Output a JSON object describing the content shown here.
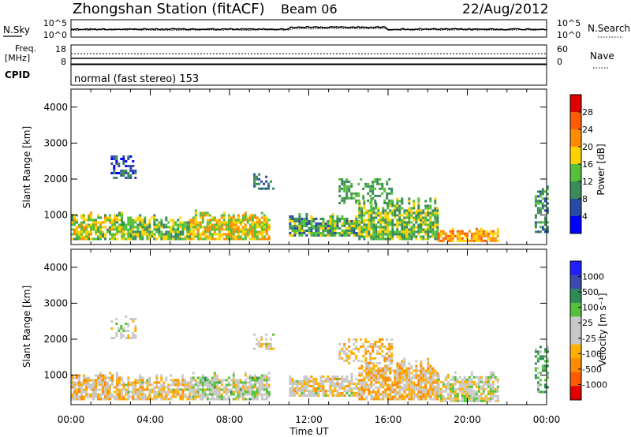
{
  "header": {
    "station": "Zhongshan Station (fitACF)",
    "beam": "Beam 06",
    "date": "22/Aug/2012"
  },
  "noise_panel": {
    "left_label": "N.Sky",
    "left_ticks": [
      "10^5",
      "10^0"
    ],
    "right_ticks": [
      "10^5",
      "10^0"
    ],
    "right_label": "N.Search"
  },
  "freq_panel": {
    "left_label_top": "Freq.",
    "left_label_bottom": "[MHz]",
    "left_ticks": [
      "18",
      "8"
    ],
    "right_ticks": [
      "60",
      "0"
    ],
    "right_label": "Nave"
  },
  "cpid": {
    "label": "CPID",
    "text": "normal (fast stereo) 153"
  },
  "x_axis": {
    "title": "Time UT",
    "tick_labels": [
      "00:00",
      "04:00",
      "08:00",
      "12:00",
      "16:00",
      "20:00",
      "00:00"
    ]
  },
  "colors": {
    "power_scale": [
      "#0000ff",
      "#2a4aa8",
      "#3a8a5a",
      "#55c03a",
      "#ffd200",
      "#ff8c00",
      "#ff5a00",
      "#e00000"
    ],
    "velocity_scale": [
      "#e00000",
      "#ff5a00",
      "#ff8c00",
      "#ffb000",
      "#c8c8c8",
      "#c8c8c8",
      "#55c03a",
      "#2e8b57",
      "#3a4ab0",
      "#2020ff"
    ]
  },
  "chart_data": [
    {
      "type": "heatmap",
      "panel": "power",
      "ylabel": "Slant Range [km]",
      "xlabel": "",
      "xlim": [
        0,
        24
      ],
      "ylim": [
        180,
        4500
      ],
      "yticks": [
        "1000",
        "2000",
        "3000",
        "4000"
      ],
      "colorbar": {
        "title": "Power [dB]",
        "ticks": [
          "28",
          "24",
          "20",
          "16",
          "12",
          "8",
          "4"
        ],
        "range": [
          0,
          32
        ]
      },
      "regions": [
        {
          "t0": 0.0,
          "t1": 2.6,
          "r0": 300,
          "r1": 1100,
          "value": 16
        },
        {
          "t0": 2.6,
          "t1": 6.0,
          "r0": 300,
          "r1": 1000,
          "value": 14
        },
        {
          "t0": 6.0,
          "t1": 10.0,
          "r0": 300,
          "r1": 1100,
          "value": 18
        },
        {
          "t0": 11.0,
          "t1": 14.5,
          "r0": 400,
          "r1": 1000,
          "value": 12
        },
        {
          "t0": 14.5,
          "t1": 18.5,
          "r0": 300,
          "r1": 1500,
          "value": 14
        },
        {
          "t0": 18.5,
          "t1": 21.5,
          "r0": 250,
          "r1": 600,
          "value": 22
        }
      ],
      "scatter_regions": [
        {
          "t0": 2.0,
          "t1": 3.2,
          "r0": 2000,
          "r1": 2600,
          "value": 6
        },
        {
          "t0": 9.2,
          "t1": 10.2,
          "r0": 1700,
          "r1": 2100,
          "value": 8
        },
        {
          "t0": 13.5,
          "t1": 16.2,
          "r0": 1300,
          "r1": 2000,
          "value": 12
        },
        {
          "t0": 23.4,
          "t1": 24.0,
          "r0": 500,
          "r1": 1800,
          "value": 10
        }
      ]
    },
    {
      "type": "heatmap",
      "panel": "velocity",
      "ylabel": "Slant Range [km]",
      "xlabel": "Time UT",
      "xlim": [
        0,
        24
      ],
      "ylim": [
        180,
        4500
      ],
      "yticks": [
        "1000",
        "2000",
        "3000",
        "4000"
      ],
      "colorbar": {
        "title": "Velocity [m s⁻¹]",
        "ticks": [
          "1000",
          "500",
          "100",
          "25",
          "-25",
          "-100",
          "-500",
          "-1000"
        ],
        "range": [
          -1200,
          1200
        ]
      },
      "regions": [
        {
          "t0": 0.0,
          "t1": 2.6,
          "r0": 300,
          "r1": 1100,
          "value": -200
        },
        {
          "t0": 2.6,
          "t1": 6.0,
          "r0": 300,
          "r1": 1000,
          "value": -150
        },
        {
          "t0": 6.0,
          "t1": 10.0,
          "r0": 300,
          "r1": 1100,
          "value": 100
        },
        {
          "t0": 11.0,
          "t1": 14.5,
          "r0": 400,
          "r1": 1000,
          "value": -100
        },
        {
          "t0": 14.5,
          "t1": 18.5,
          "r0": 300,
          "r1": 1500,
          "value": -300
        },
        {
          "t0": 18.5,
          "t1": 21.5,
          "r0": 250,
          "r1": 1100,
          "value": 0
        }
      ],
      "scatter_regions": [
        {
          "t0": 2.0,
          "t1": 3.2,
          "r0": 2000,
          "r1": 2600,
          "value": 0
        },
        {
          "t0": 9.2,
          "t1": 10.2,
          "r0": 1700,
          "r1": 2100,
          "value": 0
        },
        {
          "t0": 13.5,
          "t1": 16.2,
          "r0": 1300,
          "r1": 2000,
          "value": -300
        },
        {
          "t0": 23.4,
          "t1": 24.0,
          "r0": 500,
          "r1": 1800,
          "value": 400
        }
      ]
    }
  ]
}
